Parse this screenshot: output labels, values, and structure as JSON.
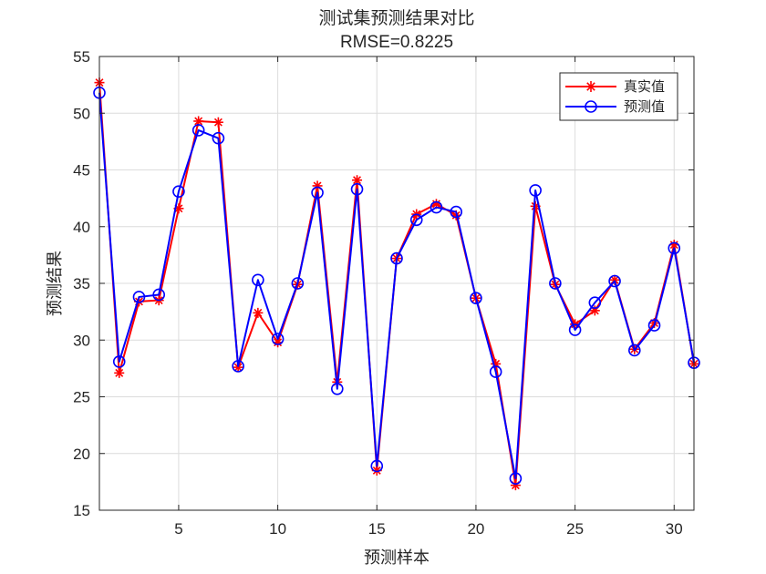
{
  "chart_data": {
    "type": "line",
    "title": "测试集预测结果对比",
    "subtitle": "RMSE=0.8225",
    "xlabel": "预测样本",
    "ylabel": "预测结果",
    "xlim": [
      1,
      31
    ],
    "ylim": [
      15,
      55
    ],
    "xticks": [
      5,
      10,
      15,
      20,
      25,
      30
    ],
    "yticks": [
      15,
      20,
      25,
      30,
      35,
      40,
      45,
      50,
      55
    ],
    "grid": true,
    "legend_position": "top-right",
    "x": [
      1,
      2,
      3,
      4,
      5,
      6,
      7,
      8,
      9,
      10,
      11,
      12,
      13,
      14,
      15,
      16,
      17,
      18,
      19,
      20,
      21,
      22,
      23,
      24,
      25,
      26,
      27,
      28,
      29,
      30,
      31
    ],
    "series": [
      {
        "name": "真实值",
        "color": "#ff0000",
        "marker": "asterisk",
        "values": [
          52.7,
          27.1,
          33.4,
          33.5,
          41.6,
          49.3,
          49.2,
          27.6,
          32.4,
          29.8,
          34.9,
          43.6,
          26.3,
          44.1,
          18.5,
          37.2,
          41.1,
          42.0,
          41.0,
          33.7,
          27.9,
          17.2,
          41.8,
          34.9,
          31.4,
          32.6,
          35.3,
          29.2,
          31.5,
          38.4,
          27.9
        ]
      },
      {
        "name": "预测值",
        "color": "#0000ff",
        "marker": "circle",
        "values": [
          51.8,
          28.1,
          33.8,
          34.0,
          43.1,
          48.5,
          47.8,
          27.7,
          35.3,
          30.1,
          35.0,
          43.0,
          25.7,
          43.3,
          18.9,
          37.2,
          40.6,
          41.7,
          41.3,
          33.7,
          27.2,
          17.8,
          43.2,
          35.0,
          30.9,
          33.3,
          35.2,
          29.1,
          31.3,
          38.1,
          28.0
        ]
      }
    ]
  }
}
